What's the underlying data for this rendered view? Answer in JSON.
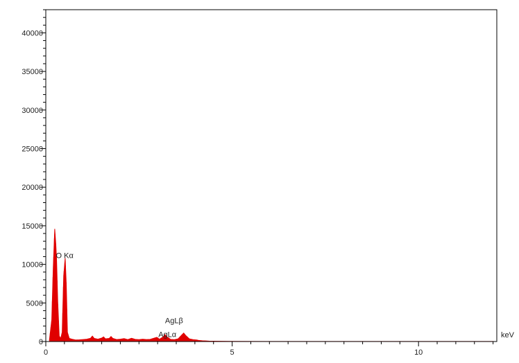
{
  "chart_data": {
    "type": "area",
    "title": "",
    "xlabel": "",
    "ylabel": "",
    "x_unit": "keV",
    "xlim": [
      0,
      12.1
    ],
    "ylim": [
      0,
      43000
    ],
    "y_ticks": [
      0,
      5000,
      10000,
      15000,
      20000,
      25000,
      30000,
      35000,
      40000
    ],
    "y_tick_labels": [
      "0",
      "5000",
      "10000",
      "15000",
      "20000",
      "25000",
      "30000",
      "35000",
      "40000"
    ],
    "x_ticks": [
      0,
      5,
      10
    ],
    "x_tick_labels": [
      "0",
      "5",
      "10"
    ],
    "grid": false,
    "series": [
      {
        "color": "#e00000",
        "points": [
          [
            0.1,
            300
          ],
          [
            0.16,
            2800
          ],
          [
            0.2,
            9500
          ],
          [
            0.24,
            14600
          ],
          [
            0.27,
            12500
          ],
          [
            0.29,
            10500
          ],
          [
            0.32,
            5200
          ],
          [
            0.36,
            700
          ],
          [
            0.4,
            400
          ],
          [
            0.44,
            1200
          ],
          [
            0.48,
            8500
          ],
          [
            0.52,
            10800
          ],
          [
            0.55,
            7300
          ],
          [
            0.58,
            1200
          ],
          [
            0.63,
            400
          ],
          [
            0.7,
            300
          ],
          [
            0.8,
            200
          ],
          [
            0.9,
            220
          ],
          [
            1.0,
            260
          ],
          [
            1.1,
            300
          ],
          [
            1.2,
            420
          ],
          [
            1.25,
            700
          ],
          [
            1.3,
            400
          ],
          [
            1.4,
            300
          ],
          [
            1.5,
            450
          ],
          [
            1.55,
            600
          ],
          [
            1.6,
            350
          ],
          [
            1.7,
            400
          ],
          [
            1.75,
            650
          ],
          [
            1.8,
            400
          ],
          [
            1.9,
            260
          ],
          [
            2.0,
            300
          ],
          [
            2.1,
            380
          ],
          [
            2.2,
            250
          ],
          [
            2.3,
            420
          ],
          [
            2.4,
            280
          ],
          [
            2.5,
            250
          ],
          [
            2.6,
            300
          ],
          [
            2.7,
            260
          ],
          [
            2.8,
            280
          ],
          [
            2.98,
            550
          ],
          [
            3.05,
            300
          ],
          [
            3.15,
            600
          ],
          [
            3.2,
            900
          ],
          [
            3.25,
            600
          ],
          [
            3.35,
            280
          ],
          [
            3.45,
            250
          ],
          [
            3.55,
            350
          ],
          [
            3.65,
            850
          ],
          [
            3.7,
            1100
          ],
          [
            3.75,
            800
          ],
          [
            3.85,
            350
          ],
          [
            3.95,
            250
          ],
          [
            4.05,
            200
          ],
          [
            4.1,
            150
          ],
          [
            4.2,
            100
          ],
          [
            4.3,
            80
          ],
          [
            4.4,
            50
          ],
          [
            4.5,
            40
          ],
          [
            5.0,
            25
          ],
          [
            6.0,
            15
          ],
          [
            8.0,
            10
          ],
          [
            10.0,
            8
          ],
          [
            12.0,
            6
          ]
        ]
      }
    ],
    "annotations": [
      {
        "text": "O Kα",
        "x": 0.27,
        "y": 10800
      },
      {
        "text": "AgLβ",
        "x": 3.2,
        "y": 2400
      },
      {
        "text": "AgLα",
        "x": 3.02,
        "y": 600
      }
    ]
  }
}
